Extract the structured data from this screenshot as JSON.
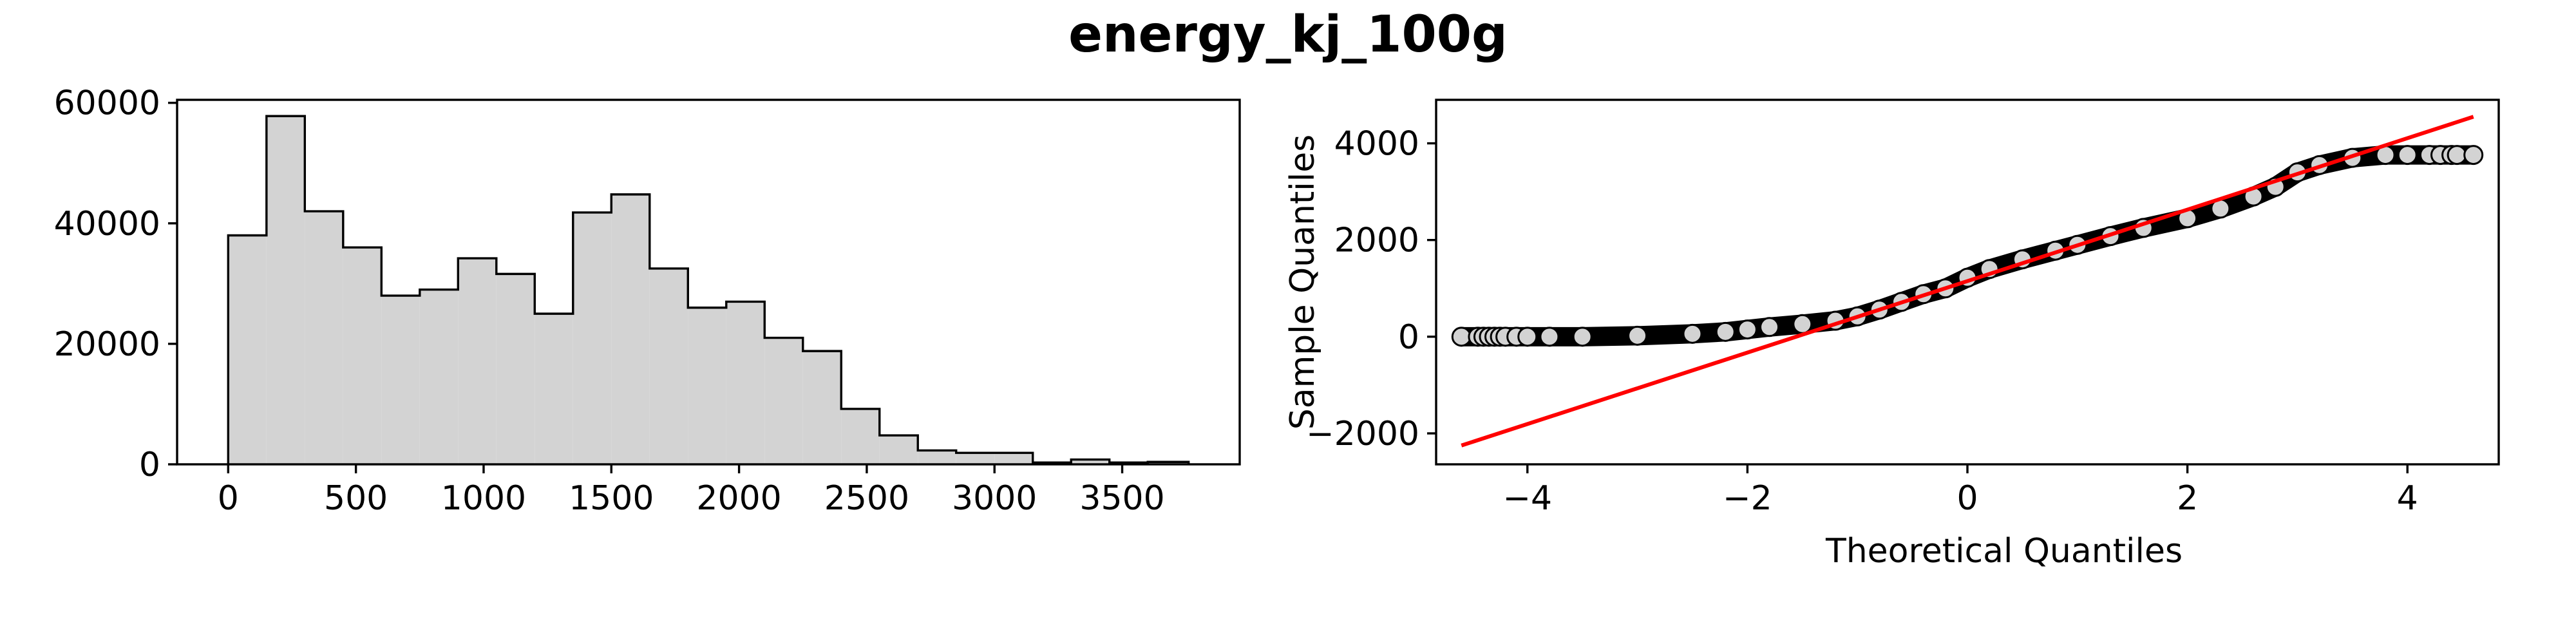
{
  "figure_title": "energy_kj_100g",
  "colors": {
    "hist_fill": "#d3d3d3",
    "hist_edge": "#000000",
    "qq_marker_fill": "#d3d3d3",
    "qq_marker_edge": "#000000",
    "qq_line": "#ff0000"
  },
  "chart_data": [
    {
      "type": "bar",
      "subtype": "histogram-step",
      "title": "",
      "xlabel": "",
      "ylabel": "",
      "bin_edges": [
        0,
        150,
        300,
        450,
        600,
        750,
        900,
        1050,
        1200,
        1350,
        1500,
        1650,
        1800,
        1950,
        2100,
        2250,
        2400,
        2550,
        2700,
        2850,
        3000,
        3150,
        3300,
        3450,
        3600,
        3760
      ],
      "values": [
        38000,
        57800,
        42000,
        36000,
        28000,
        29000,
        34200,
        31600,
        25000,
        41800,
        44800,
        32500,
        26000,
        27000,
        21000,
        18800,
        9200,
        4800,
        2300,
        1900,
        1900,
        300,
        800,
        300,
        400
      ],
      "xlim": [
        -200,
        3960
      ],
      "ylim": [
        0,
        60500
      ],
      "xticks": [
        0,
        500,
        1000,
        1500,
        2000,
        2500,
        3000,
        3500
      ],
      "xtick_labels": [
        "0",
        "500",
        "1000",
        "1500",
        "2000",
        "2500",
        "3000",
        "3500"
      ],
      "yticks": [
        0,
        20000,
        40000,
        60000
      ],
      "ytick_labels": [
        "0",
        "20000",
        "40000",
        "60000"
      ],
      "grid": false
    },
    {
      "type": "scatter",
      "subtype": "qq-plot",
      "title": "",
      "xlabel": "Theoretical Quantiles",
      "ylabel": "Sample Quantiles",
      "series": [
        {
          "kind": "points",
          "x": [
            -4.6,
            -4.45,
            -4.4,
            -4.35,
            -4.3,
            -4.25,
            -4.2,
            -4.1,
            -4.0,
            -3.8,
            -3.5,
            -3.0,
            -2.5,
            -2.2,
            -2.0,
            -1.8,
            -1.5,
            -1.2,
            -1.0,
            -0.8,
            -0.6,
            -0.4,
            -0.2,
            0.0,
            0.2,
            0.5,
            0.8,
            1.0,
            1.3,
            1.6,
            2.0,
            2.3,
            2.6,
            2.8,
            3.0,
            3.2,
            3.5,
            3.8,
            4.0,
            4.2,
            4.3,
            4.4,
            4.45,
            4.6
          ],
          "y": [
            0,
            0,
            0,
            0,
            0,
            0,
            0,
            0,
            0,
            0,
            0,
            20,
            60,
            100,
            150,
            200,
            260,
            330,
            420,
            560,
            720,
            880,
            1000,
            1220,
            1400,
            1600,
            1780,
            1900,
            2080,
            2250,
            2450,
            2650,
            2900,
            3100,
            3400,
            3550,
            3700,
            3760,
            3760,
            3760,
            3760,
            3760,
            3760,
            3760
          ]
        },
        {
          "kind": "reference-line",
          "x": [
            -4.6,
            4.6
          ],
          "y": [
            -2250,
            4550
          ]
        }
      ],
      "xlim": [
        -4.83,
        4.83
      ],
      "ylim": [
        -2640,
        4900
      ],
      "xticks": [
        -4,
        -2,
        0,
        2,
        4
      ],
      "xtick_labels": [
        "−4",
        "−2",
        "0",
        "2",
        "4"
      ],
      "yticks": [
        -2000,
        0,
        2000,
        4000
      ],
      "ytick_labels": [
        "−2000",
        "0",
        "2000",
        "4000"
      ],
      "grid": false
    }
  ]
}
